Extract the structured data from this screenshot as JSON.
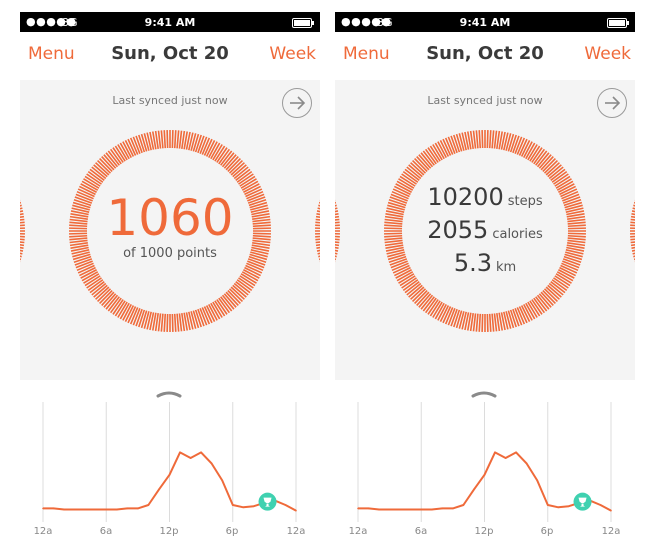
{
  "screens": [
    {
      "status": {
        "signal": "●●●●●",
        "network": "3G",
        "time": "9:41 AM"
      },
      "nav": {
        "left": "Menu",
        "title": "Sun, Oct 20",
        "right": "Week"
      },
      "sync_text": "Last synced just now",
      "points": {
        "value": "1060",
        "caption": "of 1000 points"
      },
      "x_labels": [
        "12a",
        "6a",
        "12p",
        "6p",
        "12a"
      ]
    },
    {
      "status": {
        "signal": "●●●●●",
        "network": "3G",
        "time": "9:41 AM"
      },
      "nav": {
        "left": "Menu",
        "title": "Sun, Oct 20",
        "right": "Week"
      },
      "sync_text": "Last synced just now",
      "stats": [
        {
          "value": "10200",
          "unit": "steps"
        },
        {
          "value": "2055",
          "unit": "calories"
        },
        {
          "value": "5.3",
          "unit": "km"
        }
      ],
      "x_labels": [
        "12a",
        "6a",
        "12p",
        "6p",
        "12a"
      ]
    }
  ],
  "colors": {
    "accent": "#ef6a3a",
    "trophy": "#3fd1b0"
  },
  "icons": {
    "arrow": "arrow-right-circle-icon",
    "handle": "chevron-up-icon",
    "trophy": "trophy-icon"
  },
  "chart_data": {
    "type": "line",
    "x": [
      0,
      1,
      2,
      3,
      4,
      5,
      6,
      7,
      8,
      9,
      10,
      11,
      12,
      13,
      14,
      15,
      16,
      17,
      18,
      19,
      20,
      21,
      22,
      23,
      24
    ],
    "values": [
      0.05,
      0.05,
      0.04,
      0.04,
      0.04,
      0.04,
      0.04,
      0.04,
      0.05,
      0.05,
      0.08,
      0.22,
      0.35,
      0.55,
      0.5,
      0.55,
      0.45,
      0.3,
      0.08,
      0.06,
      0.07,
      0.1,
      0.12,
      0.08,
      0.03
    ],
    "xlabels": [
      "12a",
      "6a",
      "12p",
      "6p",
      "12a"
    ],
    "grid": true
  }
}
